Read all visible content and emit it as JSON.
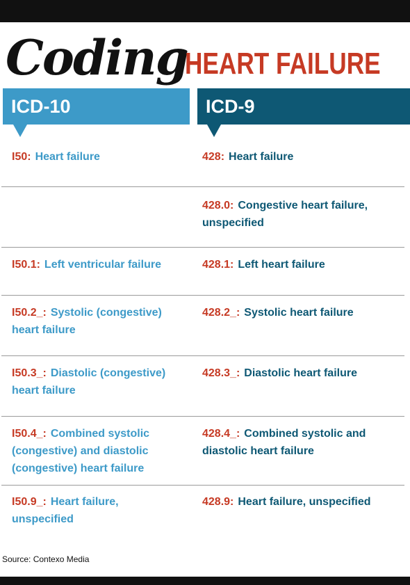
{
  "title": {
    "main": "Coding",
    "sub": "HEART FAILURE"
  },
  "columns": {
    "left": "ICD-10",
    "right": "ICD-9"
  },
  "rows": [
    {
      "left_code": "I50:",
      "left_lines": [
        "Heart failure"
      ],
      "right_code": "428:",
      "right_lines": [
        "Heart failure"
      ]
    },
    {
      "left_code": "",
      "left_lines": [],
      "right_code": "428.0:",
      "right_lines": [
        "Congestive heart failure,",
        "unspecified"
      ]
    },
    {
      "left_code": "I50.1:",
      "left_lines": [
        "Left ventricular failure"
      ],
      "right_code": "428.1:",
      "right_lines": [
        "Left heart failure"
      ]
    },
    {
      "left_code": "I50.2_:",
      "left_lines": [
        "Systolic (congestive)",
        "heart failure"
      ],
      "right_code": "428.2_:",
      "right_lines": [
        "Systolic heart failure"
      ]
    },
    {
      "left_code": "I50.3_:",
      "left_lines": [
        "Diastolic (congestive)",
        "heart failure"
      ],
      "right_code": "428.3_:",
      "right_lines": [
        "Diastolic heart failure"
      ]
    },
    {
      "left_code": "I50.4_:",
      "left_lines": [
        "Combined systolic",
        "(congestive) and diastolic",
        "(congestive) heart failure"
      ],
      "right_code": "428.4_:",
      "right_lines": [
        "Combined systolic and",
        "diastolic heart failure"
      ]
    },
    {
      "left_code": "I50.9_:",
      "left_lines": [
        "Heart failure,",
        "unspecified"
      ],
      "right_code": "428.9:",
      "right_lines": [
        "Heart failure, unspecified"
      ]
    }
  ],
  "source": "Source: Contexo Media",
  "colors": {
    "icd10": "#3d9ac8",
    "icd9": "#0e5874",
    "code": "#c63a24",
    "bar": "#111111"
  }
}
